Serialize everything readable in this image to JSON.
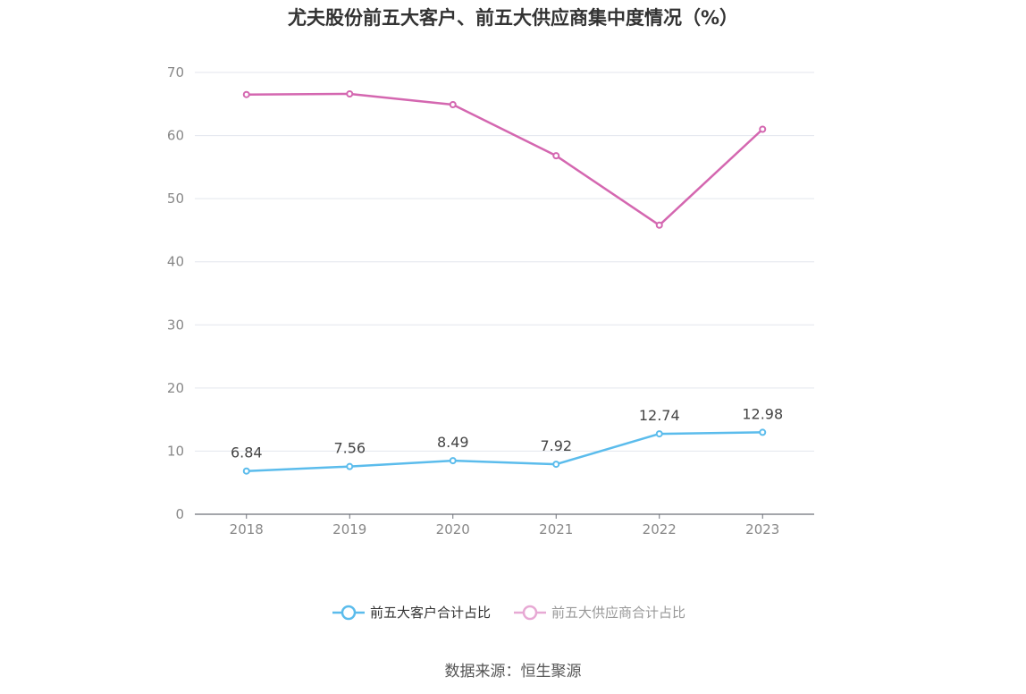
{
  "title": "尤夫股份前五大客户、前五大供应商集中度情况（%）",
  "source": "数据来源：恒生聚源",
  "colors": {
    "customers": "#5bbcec",
    "suppliers": "#d467b0",
    "suppliers_legend": "#e7a9d4"
  },
  "chart_data": {
    "type": "line",
    "title": "尤夫股份前五大客户、前五大供应商集中度情况（%）",
    "categories": [
      "2018",
      "2019",
      "2020",
      "2021",
      "2022",
      "2023"
    ],
    "ylim": [
      0,
      70
    ],
    "yticks": [
      0,
      10,
      20,
      30,
      40,
      50,
      60,
      70
    ],
    "grid": true,
    "legend_position": "bottom",
    "series": [
      {
        "name": "前五大客户合计占比",
        "values": [
          6.84,
          7.56,
          8.49,
          7.92,
          12.74,
          12.98
        ],
        "labels": [
          "6.84",
          "7.56",
          "8.49",
          "7.92",
          "12.74",
          "12.98"
        ]
      },
      {
        "name": "前五大供应商合计占比",
        "values": [
          66.5,
          66.6,
          64.9,
          56.8,
          45.8,
          61.0
        ]
      }
    ]
  }
}
